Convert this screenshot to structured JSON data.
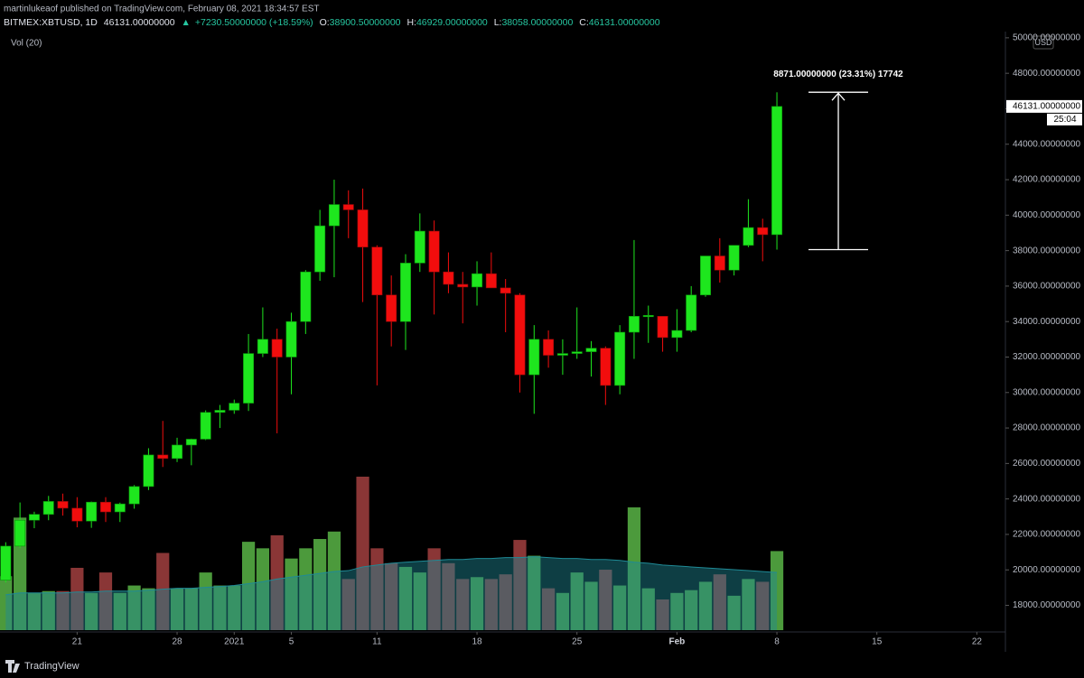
{
  "header": {
    "publisher": "martinlukeaof published on TradingView.com, February 08, 2021 18:34:57 EST",
    "symbol": "BITMEX:XBTUSD, 1D",
    "last": "46131.00000000",
    "change": "+7230.50000000 (+18.59%)",
    "ohlc": [
      {
        "label": "O:",
        "value": "38900.50000000"
      },
      {
        "label": "H:",
        "value": "46929.00000000"
      },
      {
        "label": "L:",
        "value": "38058.00000000"
      },
      {
        "label": "C:",
        "value": "46131.00000000"
      }
    ]
  },
  "chart_data": {
    "type": "candlestick",
    "volume_label": "Vol (20)",
    "currency": "USD",
    "open": [
      19420,
      21340,
      22800,
      23130,
      23860,
      23480,
      22750,
      23820,
      23270,
      23720,
      24700,
      26480,
      26280,
      27040,
      27370,
      28880,
      29000,
      29400,
      32200,
      33000,
      32000,
      34000,
      36800,
      39400,
      40600,
      40300,
      38200,
      35500,
      34000,
      37300,
      39100,
      36800,
      36100,
      35950,
      36700,
      35900,
      35500,
      31000,
      33000,
      32100,
      32200,
      32300,
      32500,
      30400,
      33400,
      34300,
      34300,
      33100,
      33500,
      35500,
      37700,
      36900,
      38300,
      39300,
      38900.5
    ],
    "high": [
      21560,
      23800,
      23280,
      24170,
      24300,
      24100,
      23850,
      24100,
      23790,
      24780,
      26860,
      28400,
      27450,
      27400,
      28990,
      29300,
      29600,
      33300,
      34800,
      33600,
      34500,
      36900,
      40300,
      42000,
      41400,
      41500,
      38300,
      36600,
      37800,
      40100,
      39700,
      37900,
      36800,
      37400,
      37900,
      36400,
      35600,
      33800,
      33500,
      33000,
      34800,
      32900,
      32600,
      33800,
      38600,
      34900,
      34300,
      34700,
      36000,
      37700,
      38700,
      38300,
      40900,
      39800,
      46929
    ],
    "low": [
      19290,
      21230,
      22350,
      22800,
      23060,
      22400,
      22370,
      22700,
      22700,
      23450,
      24500,
      25800,
      26080,
      25900,
      27320,
      28000,
      28800,
      28960,
      32000,
      27700,
      29900,
      33300,
      36300,
      36500,
      38700,
      35100,
      30400,
      32600,
      32400,
      36800,
      34400,
      35600,
      33900,
      34900,
      35900,
      33400,
      30000,
      28800,
      31400,
      31000,
      31900,
      30900,
      29300,
      29900,
      31900,
      32800,
      32300,
      32300,
      33400,
      35400,
      36200,
      36600,
      38200,
      37400,
      38058
    ],
    "close": [
      21340,
      22800,
      23130,
      23860,
      23480,
      22750,
      23820,
      23270,
      23720,
      24700,
      26480,
      26280,
      27040,
      27370,
      28880,
      29000,
      29400,
      32200,
      33000,
      32000,
      34000,
      36800,
      39400,
      40600,
      40300,
      38200,
      35500,
      34000,
      37300,
      39100,
      36800,
      36100,
      35950,
      36700,
      35900,
      35600,
      31000,
      33000,
      32100,
      32200,
      32300,
      32500,
      30400,
      33400,
      34300,
      34350,
      33100,
      33500,
      35500,
      37700,
      36900,
      38300,
      39300,
      38900.5,
      46131
    ],
    "volume": [
      58,
      121,
      40,
      42,
      42,
      67,
      40,
      62,
      40,
      48,
      45,
      83,
      45,
      45,
      62,
      48,
      48,
      95,
      88,
      102,
      77,
      88,
      98,
      106,
      55,
      165,
      88,
      72,
      68,
      62,
      88,
      72,
      55,
      57,
      55,
      60,
      97,
      80,
      45,
      40,
      62,
      52,
      65,
      48,
      132,
      45,
      33,
      40,
      43,
      52,
      60,
      37,
      55,
      52,
      85
    ],
    "volume_ma": [
      38,
      40,
      40,
      40,
      40,
      41,
      41,
      42,
      42,
      42,
      43,
      44,
      45,
      45,
      46,
      47,
      48,
      50,
      52,
      55,
      57,
      59,
      61,
      63,
      64,
      68,
      70,
      72,
      73,
      74,
      75,
      76,
      76,
      77,
      77,
      78,
      78,
      79,
      78,
      77,
      77,
      76,
      76,
      75,
      73,
      72,
      70,
      69,
      68,
      67,
      66,
      65,
      64,
      63,
      62
    ],
    "up_color": "#1ee61e",
    "down_color": "#f20d0d",
    "volume_up_color": "#4c9a3c",
    "volume_down_color": "#8a3636",
    "volume_ma_color": "#1f8a96",
    "ylim": [
      16500,
      50350
    ],
    "yticks": [
      {
        "value": 18000,
        "label": "18000.00000000"
      },
      {
        "value": 20000,
        "label": "20000.00000000"
      },
      {
        "value": 22000,
        "label": "22000.00000000"
      },
      {
        "value": 24000,
        "label": "24000.00000000"
      },
      {
        "value": 26000,
        "label": "26000.00000000"
      },
      {
        "value": 28000,
        "label": "28000.00000000"
      },
      {
        "value": 30000,
        "label": "30000.00000000"
      },
      {
        "value": 32000,
        "label": "32000.00000000"
      },
      {
        "value": 34000,
        "label": "34000.00000000"
      },
      {
        "value": 36000,
        "label": "36000.00000000"
      },
      {
        "value": 38000,
        "label": "38000.00000000"
      },
      {
        "value": 40000,
        "label": "40000.00000000"
      },
      {
        "value": 42000,
        "label": "42000.00000000"
      },
      {
        "value": 44000,
        "label": "44000.00000000"
      },
      {
        "value": 46000,
        "label": "46000.00000000"
      },
      {
        "value": 48000,
        "label": "48000.00000000"
      },
      {
        "value": 50000,
        "label": "50000.00000000"
      }
    ],
    "xlim": [
      -0.4,
      70
    ],
    "xticks": [
      {
        "value": 5,
        "label": "21"
      },
      {
        "value": 12,
        "label": "28"
      },
      {
        "value": 16,
        "label": "2021"
      },
      {
        "value": 20,
        "label": "5"
      },
      {
        "value": 26,
        "label": "11"
      },
      {
        "value": 33,
        "label": "18"
      },
      {
        "value": 40,
        "label": "25"
      },
      {
        "value": 47,
        "label": "Feb"
      },
      {
        "value": 54,
        "label": "8"
      },
      {
        "value": 61,
        "label": "15"
      },
      {
        "value": 68,
        "label": "22"
      }
    ],
    "last_price": {
      "value": 46131,
      "label": "46131.00000000"
    },
    "countdown": "25:04",
    "measure": {
      "from": 38058,
      "to": 46929,
      "label": "8871.00000000 (23.31%) 17742"
    }
  },
  "footer": {
    "brand": "TradingView"
  }
}
